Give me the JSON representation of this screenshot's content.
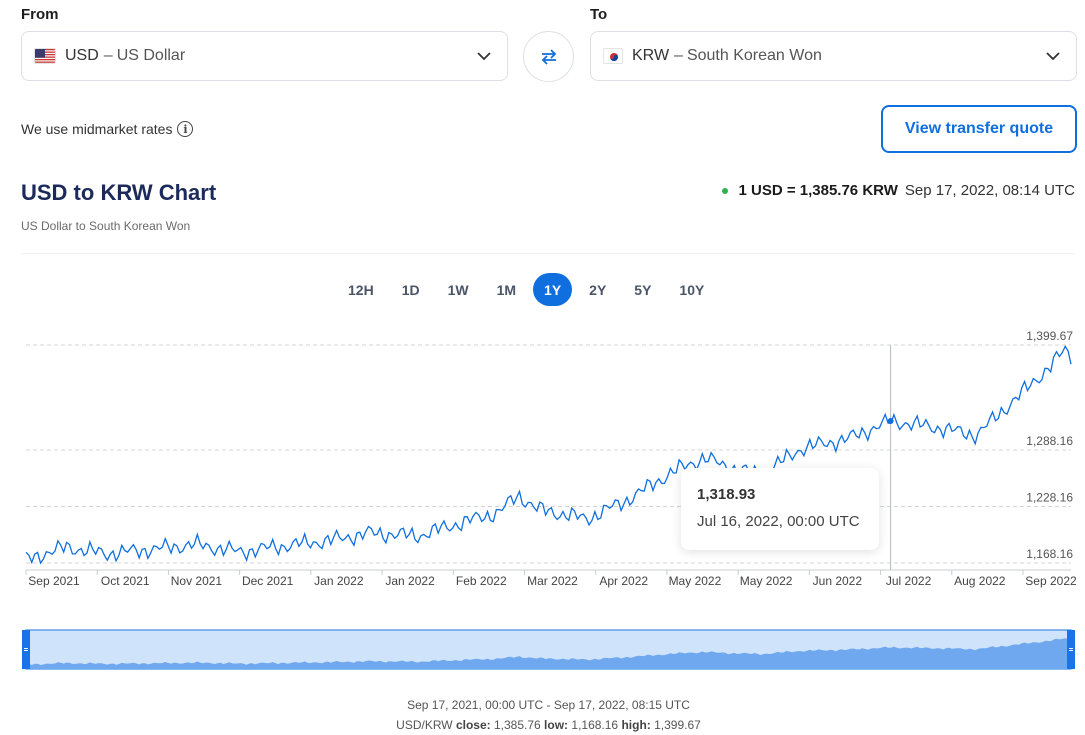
{
  "from": {
    "label": "From",
    "code": "USD",
    "name": "US Dollar",
    "dash": "–"
  },
  "to": {
    "label": "To",
    "code": "KRW",
    "name": "South Korean Won",
    "dash": "–"
  },
  "midmarket_text": "We use midmarket rates",
  "quote_button": "View transfer quote",
  "chart_title": "USD to KRW Chart",
  "chart_subtitle": "US Dollar to South Korean Won",
  "current_rate": {
    "text": "1 USD = 1,385.76 KRW",
    "timestamp": "Sep 17, 2022, 08:14 UTC",
    "status_color": "#2eb24d"
  },
  "ranges": [
    "12H",
    "1D",
    "1W",
    "1M",
    "1Y",
    "2Y",
    "5Y",
    "10Y"
  ],
  "active_range": "1Y",
  "accent_color": "#0f6fde",
  "icons": {
    "swap": "swap-arrows-icon",
    "chevron": "chevron-down-icon",
    "info": "info-icon"
  },
  "chart_data": {
    "type": "line",
    "series_color": "#0f6fde",
    "x_tick_labels": [
      "Sep 2021",
      "Oct 2021",
      "Nov 2021",
      "Dec 2021",
      "Jan 2022",
      "Jan 2022",
      "Feb 2022",
      "Mar 2022",
      "Apr 2022",
      "May 2022",
      "May 2022",
      "Jun 2022",
      "Jul 2022",
      "Aug 2022",
      "Sep 2022"
    ],
    "y_tick_labels": [
      "1,399.67",
      "1,288.16",
      "1,228.16",
      "1,168.16"
    ],
    "y_ticks": [
      1399.67,
      1288.16,
      1228.16,
      1168.16
    ],
    "ylim": [
      1168.16,
      1399.67
    ],
    "x_range": [
      "2021-09-17",
      "2022-09-17"
    ],
    "x": [
      "2021-09-17",
      "2021-10-01",
      "2021-10-15",
      "2021-11-01",
      "2021-11-15",
      "2021-12-01",
      "2021-12-15",
      "2022-01-01",
      "2022-01-15",
      "2022-02-01",
      "2022-02-15",
      "2022-03-01",
      "2022-03-08",
      "2022-03-15",
      "2022-04-01",
      "2022-04-15",
      "2022-05-01",
      "2022-05-12",
      "2022-05-20",
      "2022-06-01",
      "2022-06-15",
      "2022-07-01",
      "2022-07-16",
      "2022-08-01",
      "2022-08-15",
      "2022-09-01",
      "2022-09-10",
      "2022-09-15",
      "2022-09-17"
    ],
    "values": [
      1172,
      1185,
      1178,
      1183,
      1188,
      1180,
      1186,
      1192,
      1200,
      1197,
      1210,
      1222,
      1240,
      1225,
      1215,
      1235,
      1265,
      1280,
      1270,
      1262,
      1290,
      1300,
      1318.93,
      1312,
      1304,
      1352,
      1378,
      1395,
      1385.76
    ],
    "tooltip": {
      "value": "1,318.93",
      "date": "Jul 16, 2022, 00:00 UTC"
    },
    "grid": "horizontal dashed"
  },
  "footer": {
    "range_text": "Sep 17, 2021, 00:00 UTC - Sep 17, 2022, 08:15 UTC",
    "pair": "USD/KRW",
    "close_label": "close:",
    "close_value": "1,385.76",
    "low_label": "low:",
    "low_value": "1,168.16",
    "high_label": "high:",
    "high_value": "1,399.67"
  }
}
